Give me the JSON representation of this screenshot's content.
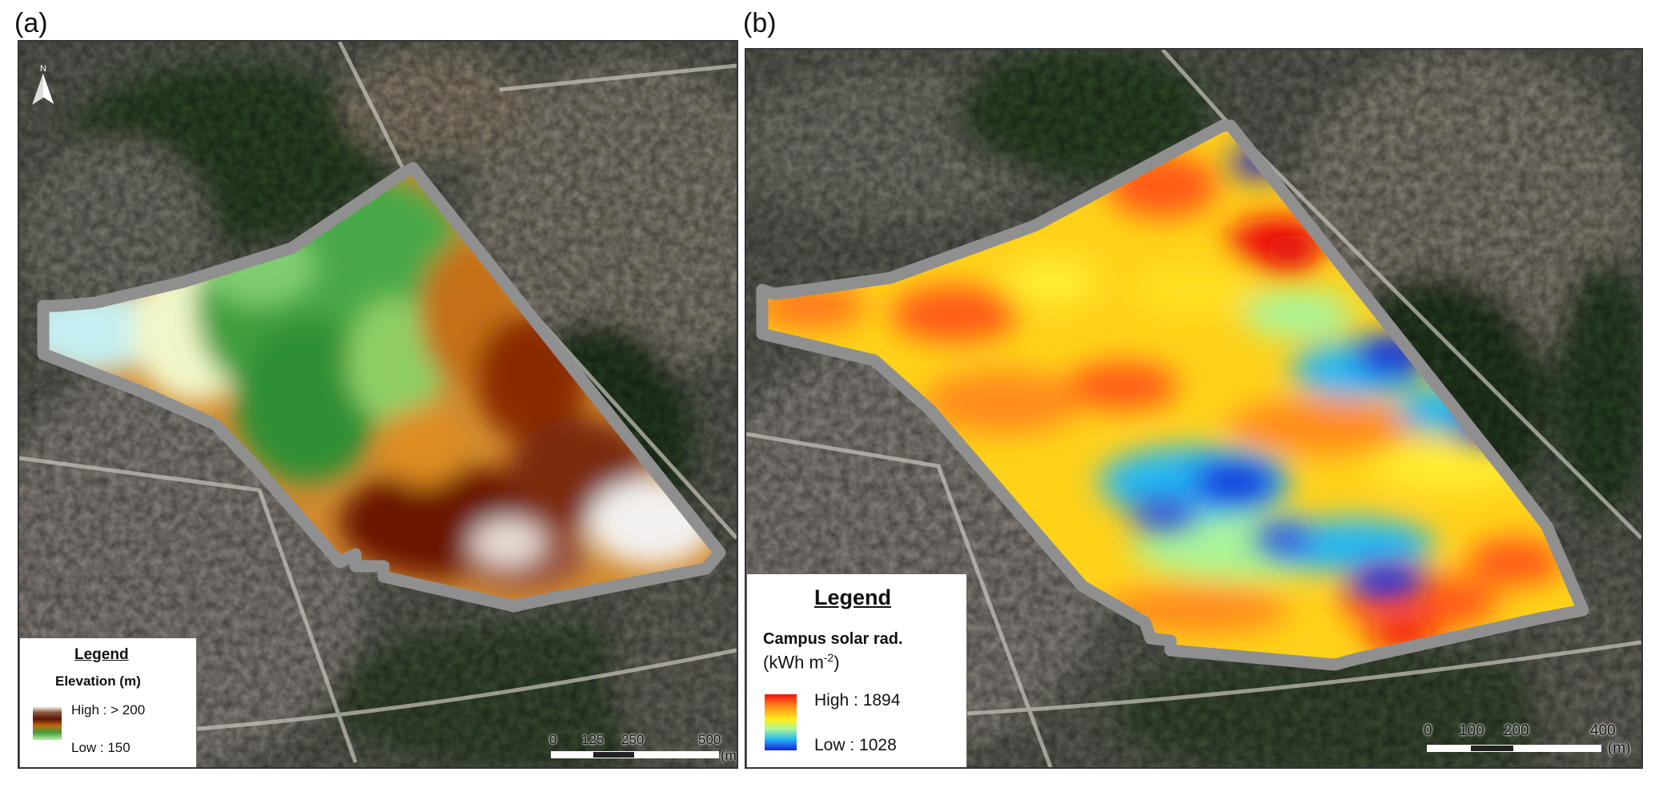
{
  "panels": {
    "a": {
      "label": "(a)",
      "legend": {
        "title": "Legend",
        "item": "Elevation (m)",
        "high": "High : > 200",
        "low": "Low : 150"
      },
      "scale": {
        "ticks": [
          "0",
          "125",
          "250",
          "500"
        ],
        "unit": "(m)"
      },
      "north_glyph": "N"
    },
    "b": {
      "label": "(b)",
      "legend": {
        "title": "Legend",
        "item": "Campus solar rad.",
        "unit_prefix": "(kWh m",
        "unit_sup": "-2",
        "unit_suffix": ")",
        "high": "High : 1894",
        "low": "Low : 1028"
      },
      "scale": {
        "ticks": [
          "0",
          "100",
          "200",
          "400"
        ],
        "unit": "(m)"
      }
    }
  },
  "colors": {
    "boundary": "#8f8f8f",
    "elevation_ramp": [
      "#ffffff",
      "#6b1a05",
      "#b24a06",
      "#d98a20",
      "#3e9f3a",
      "#8fd27a",
      "#e8f7c8",
      "#bfe8ee"
    ],
    "solar_ramp": [
      "#f01010",
      "#ff8c1a",
      "#ffee1a",
      "#aaf59a",
      "#27b8f2",
      "#1520d8"
    ]
  },
  "icons": {
    "north_arrow": "north-arrow-icon"
  }
}
